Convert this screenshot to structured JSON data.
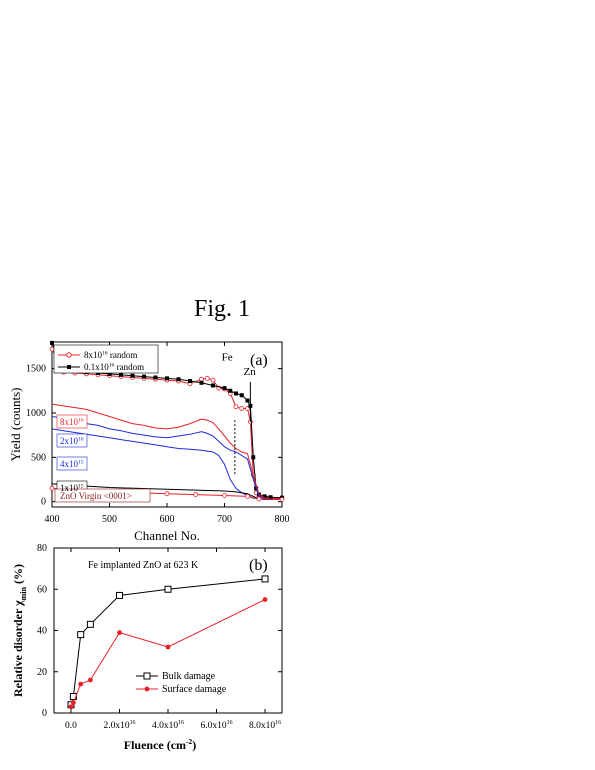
{
  "figure_title": "Fig. 1",
  "colors": {
    "black": "#000000",
    "red": "#e8202a",
    "blue": "#1d2bd6",
    "dark_red": "#8b1a1a"
  },
  "chart_data": [
    {
      "type": "line",
      "panel_label": "(a)",
      "xlabel": "Channel No.",
      "ylabel": "Yield (counts)",
      "xlim": [
        400,
        800
      ],
      "ylim": [
        -60,
        1800
      ],
      "xticks": [
        "400",
        "500",
        "600",
        "700",
        "800"
      ],
      "yticks": [
        "0",
        "500",
        "1000",
        "1500"
      ],
      "annotations": {
        "fe": "Fe",
        "zn": "Zn"
      },
      "legend": {
        "entry1": {
          "text": "8x10",
          "sup": "16",
          "suffix": " random"
        },
        "entry2": {
          "text": "0.1x10",
          "sup": "16",
          "suffix": " random"
        }
      },
      "labels": {
        "f8": {
          "text": "8x10",
          "sup": "16"
        },
        "f2": {
          "text": "2x10",
          "sup": "16"
        },
        "f4": {
          "text": "4x10",
          "sup": "15"
        },
        "f1": {
          "text": "1x10",
          "sup": "15"
        },
        "virgin": "ZnO Virgin <0001>"
      },
      "series": [
        {
          "name": "8x10^16 random",
          "color": "#e8202a",
          "style": "open-circle-line",
          "x": [
            400,
            420,
            440,
            460,
            480,
            500,
            520,
            540,
            560,
            580,
            600,
            620,
            640,
            660,
            670,
            680,
            690,
            700,
            710,
            720,
            730,
            740,
            745,
            750,
            755,
            760,
            770,
            780,
            800
          ],
          "y": [
            1720,
            1460,
            1450,
            1440,
            1430,
            1420,
            1410,
            1400,
            1390,
            1380,
            1370,
            1360,
            1330,
            1380,
            1390,
            1370,
            1280,
            1270,
            1220,
            1070,
            1050,
            1050,
            900,
            300,
            100,
            60,
            50,
            45,
            40
          ]
        },
        {
          "name": "0.1x10^16 random",
          "color": "#000000",
          "style": "filled-square-line",
          "x": [
            400,
            420,
            440,
            460,
            480,
            500,
            520,
            540,
            560,
            580,
            600,
            620,
            640,
            660,
            680,
            700,
            710,
            720,
            730,
            740,
            745,
            750,
            755,
            760,
            770,
            780,
            800
          ],
          "y": [
            1790,
            1500,
            1470,
            1460,
            1450,
            1440,
            1430,
            1420,
            1410,
            1400,
            1390,
            1380,
            1360,
            1340,
            1310,
            1280,
            1250,
            1220,
            1200,
            1140,
            1080,
            500,
            150,
            80,
            60,
            50,
            45
          ]
        },
        {
          "name": "8x10^16",
          "color": "#e8202a",
          "style": "line",
          "x": [
            400,
            420,
            440,
            460,
            480,
            500,
            520,
            540,
            560,
            580,
            600,
            620,
            640,
            660,
            670,
            680,
            690,
            700,
            710,
            720,
            730,
            740,
            750,
            760,
            770,
            780,
            800
          ],
          "y": [
            1100,
            1080,
            1060,
            1040,
            1000,
            960,
            920,
            880,
            860,
            830,
            820,
            840,
            880,
            930,
            920,
            890,
            820,
            740,
            660,
            600,
            560,
            540,
            300,
            80,
            40,
            30,
            30
          ]
        },
        {
          "name": "2x10^16",
          "color": "#1d2bd6",
          "style": "line",
          "x": [
            400,
            420,
            440,
            460,
            480,
            500,
            520,
            540,
            560,
            580,
            600,
            620,
            640,
            660,
            670,
            680,
            690,
            700,
            710,
            720,
            730,
            740,
            750,
            760,
            770,
            780,
            800
          ],
          "y": [
            960,
            940,
            920,
            880,
            860,
            820,
            800,
            770,
            750,
            730,
            720,
            740,
            760,
            790,
            770,
            740,
            680,
            620,
            580,
            560,
            520,
            480,
            250,
            60,
            30,
            25,
            25
          ]
        },
        {
          "name": "4x10^15",
          "color": "#1d2bd6",
          "style": "line",
          "x": [
            400,
            420,
            440,
            460,
            480,
            500,
            520,
            540,
            560,
            580,
            600,
            620,
            640,
            660,
            680,
            690,
            700,
            710,
            720,
            730,
            740,
            750,
            760,
            770,
            780,
            800
          ],
          "y": [
            820,
            800,
            780,
            760,
            740,
            720,
            700,
            680,
            660,
            640,
            620,
            600,
            590,
            580,
            560,
            520,
            420,
            250,
            150,
            100,
            70,
            40,
            30,
            25,
            25,
            25
          ]
        },
        {
          "name": "1x10^15",
          "color": "#000000",
          "style": "line",
          "x": [
            400,
            450,
            500,
            550,
            600,
            650,
            700,
            720,
            740,
            750,
            760,
            800
          ],
          "y": [
            200,
            180,
            160,
            150,
            140,
            130,
            120,
            110,
            90,
            60,
            30,
            25
          ]
        },
        {
          "name": "ZnO Virgin <0001>",
          "color": "#e8202a",
          "style": "open-circle-line",
          "x": [
            400,
            450,
            500,
            550,
            600,
            650,
            700,
            740,
            760,
            800
          ],
          "y": [
            150,
            130,
            110,
            100,
            90,
            80,
            70,
            60,
            30,
            25
          ]
        }
      ]
    },
    {
      "type": "line",
      "panel_label": "(b)",
      "inner_title": "Fe implanted ZnO at 623 K",
      "xlabel": "Fluence (cm",
      "xlabel_sup": "-2",
      "xlabel_end": ")",
      "ylabel": "Relative disorder χ",
      "ylabel_sub": "min",
      "ylabel_end": " (%)",
      "xlim": [
        -0.7,
        8.7
      ],
      "ylim": [
        0,
        80
      ],
      "xticks": [
        {
          "m": "0.0",
          "e": ""
        },
        {
          "m": "2.0x10",
          "e": "16"
        },
        {
          "m": "4.0x10",
          "e": "16"
        },
        {
          "m": "6.0x10",
          "e": "16"
        },
        {
          "m": "8.0x10",
          "e": "16"
        }
      ],
      "yticks": [
        "0",
        "20",
        "40",
        "60",
        "80"
      ],
      "series": [
        {
          "name": "Bulk damage",
          "color": "#000000",
          "marker": "open-square",
          "x": [
            0,
            0.1,
            0.4,
            0.8,
            2,
            4,
            8
          ],
          "y": [
            4,
            8,
            38,
            43,
            57,
            60,
            65
          ]
        },
        {
          "name": "Surface damage",
          "color": "#e8202a",
          "marker": "filled-circle",
          "x": [
            0,
            0.1,
            0.4,
            0.8,
            2,
            4,
            8
          ],
          "y": [
            3,
            5,
            14,
            16,
            39,
            32,
            55
          ]
        }
      ]
    }
  ]
}
